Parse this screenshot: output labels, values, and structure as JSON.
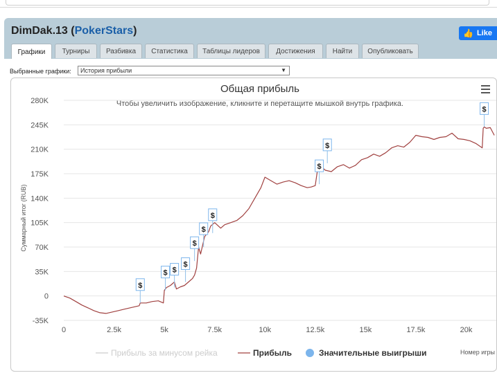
{
  "header": {
    "player_name": "DimDak.13",
    "site_name": "PokerStars",
    "fb_like_label": "Like"
  },
  "tabs": [
    {
      "label": "Графики",
      "active": true
    },
    {
      "label": "Турниры"
    },
    {
      "label": "Разбивка"
    },
    {
      "label": "Статистика"
    },
    {
      "label": "Таблицы лидеров"
    },
    {
      "label": "Достижения"
    },
    {
      "label": "Найти"
    },
    {
      "label": "Опубликовать"
    }
  ],
  "selector": {
    "label": "Выбранные графики:",
    "value": "История прибыли",
    "arrow": "▼"
  },
  "chart_data": {
    "type": "line",
    "title": "Общая прибыль",
    "subtitle": "Чтобы увеличить изображение, кликните и перетащите мышкой внутрь графика.",
    "ylabel": "Суммарный итог (RUB)",
    "xlabel": "Номер игры",
    "ylim": [
      -35000,
      280000
    ],
    "xlim": [
      0,
      21500
    ],
    "y_ticks": [
      {
        "value": 280000,
        "label": "280K"
      },
      {
        "value": 245000,
        "label": "245K"
      },
      {
        "value": 210000,
        "label": "210K"
      },
      {
        "value": 175000,
        "label": "175K"
      },
      {
        "value": 140000,
        "label": "140K"
      },
      {
        "value": 105000,
        "label": "105K"
      },
      {
        "value": 70000,
        "label": "70K"
      },
      {
        "value": 35000,
        "label": "35K"
      },
      {
        "value": 0,
        "label": "0"
      },
      {
        "value": -35000,
        "label": "-35K"
      }
    ],
    "x_ticks": [
      {
        "value": 0,
        "label": "0"
      },
      {
        "value": 2500,
        "label": "2.5k"
      },
      {
        "value": 5000,
        "label": "5k"
      },
      {
        "value": 7500,
        "label": "7.5k"
      },
      {
        "value": 10000,
        "label": "10k"
      },
      {
        "value": 12500,
        "label": "12.5k"
      },
      {
        "value": 15000,
        "label": "15k"
      },
      {
        "value": 17500,
        "label": "17.5k"
      },
      {
        "value": 20000,
        "label": "20k"
      }
    ],
    "series": [
      {
        "name": "Прибыль",
        "color": "#a0403f",
        "x": [
          0,
          300,
          600,
          900,
          1200,
          1500,
          1800,
          2100,
          2400,
          2700,
          3000,
          3300,
          3600,
          3750,
          3800,
          4100,
          4400,
          4700,
          4950,
          5000,
          5100,
          5300,
          5500,
          5600,
          5800,
          6000,
          6200,
          6400,
          6500,
          6600,
          6700,
          6800,
          7000,
          7200,
          7300,
          7500,
          7800,
          8000,
          8300,
          8600,
          8900,
          9200,
          9500,
          9800,
          10000,
          10300,
          10600,
          10900,
          11200,
          11500,
          11800,
          12100,
          12300,
          12500,
          12600,
          12700,
          12800,
          13000,
          13300,
          13600,
          13900,
          14200,
          14500,
          14800,
          15100,
          15400,
          15700,
          16000,
          16300,
          16600,
          16900,
          17200,
          17500,
          17800,
          18100,
          18400,
          18700,
          19000,
          19300,
          19600,
          19900,
          20200,
          20500,
          20800,
          20850,
          20900,
          21000,
          21200,
          21400
        ],
        "values": [
          0,
          -3000,
          -8000,
          -13000,
          -17000,
          -21000,
          -24000,
          -25000,
          -23000,
          -21000,
          -19000,
          -17000,
          -15000,
          -14000,
          -10000,
          -10000,
          -8000,
          -7000,
          -10000,
          8000,
          12000,
          15000,
          20000,
          10000,
          13000,
          15000,
          20000,
          25000,
          30000,
          40000,
          70000,
          60000,
          85000,
          92000,
          100000,
          105000,
          97000,
          102000,
          105000,
          108000,
          115000,
          125000,
          140000,
          155000,
          170000,
          165000,
          160000,
          163000,
          165000,
          162000,
          158000,
          155000,
          156000,
          158000,
          178000,
          190000,
          185000,
          180000,
          178000,
          185000,
          188000,
          183000,
          187000,
          195000,
          198000,
          203000,
          200000,
          205000,
          212000,
          215000,
          213000,
          220000,
          230000,
          228000,
          227000,
          224000,
          227000,
          228000,
          233000,
          225000,
          224000,
          222000,
          218000,
          212000,
          240000,
          242000,
          240000,
          241000,
          230000
        ]
      },
      {
        "name": "Прибыль за минусом рейка",
        "color": "#cccccc",
        "hidden": true
      }
    ],
    "significant_wins": {
      "name": "Значительные выигрыши",
      "color": "#7cb5ec",
      "symbol": "$",
      "x": [
        3800,
        5050,
        5500,
        6050,
        6500,
        6950,
        7400,
        12700,
        13100,
        20900
      ],
      "values": [
        -10000,
        8000,
        12000,
        20000,
        50000,
        70000,
        90000,
        160000,
        190000,
        242000
      ]
    },
    "legend": [
      "Прибыль за минусом рейка",
      "Прибыль",
      "Значительные выигрыши"
    ],
    "legend_position": "bottom"
  }
}
